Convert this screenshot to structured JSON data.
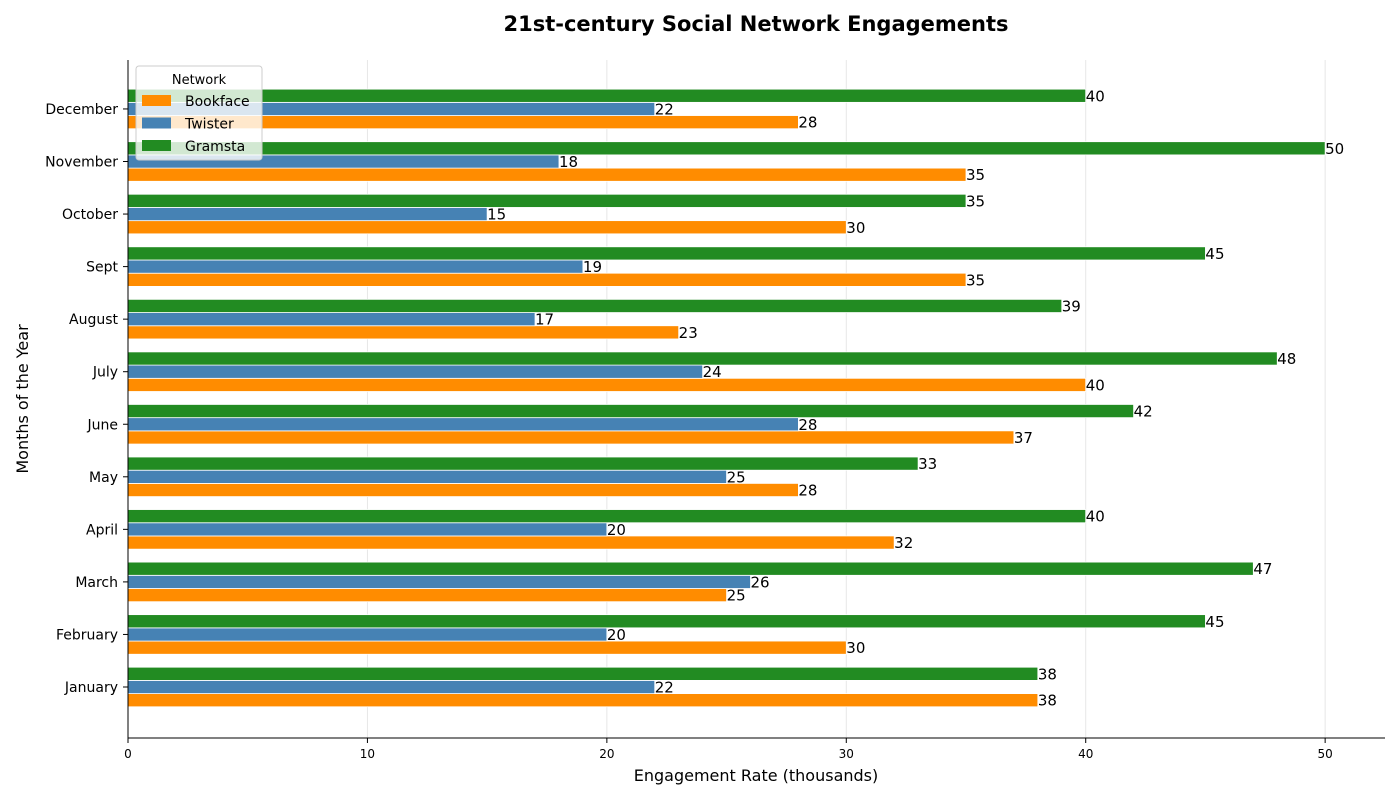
{
  "chart_data": {
    "type": "bar",
    "orientation": "horizontal",
    "title": "21st-century Social Network Engagements",
    "xlabel": "Engagement Rate (thousands)",
    "ylabel": "Months of the Year",
    "categories": [
      "January",
      "February",
      "March",
      "April",
      "May",
      "June",
      "July",
      "August",
      "Sept",
      "October",
      "November",
      "December"
    ],
    "series": [
      {
        "name": "Bookface",
        "color": "#ff8c00",
        "values": [
          38,
          30,
          25,
          32,
          28,
          37,
          40,
          23,
          35,
          30,
          35,
          28
        ]
      },
      {
        "name": "Twister",
        "color": "#4682b4",
        "values": [
          22,
          20,
          26,
          20,
          25,
          28,
          24,
          17,
          19,
          15,
          18,
          22
        ]
      },
      {
        "name": "Gramsta",
        "color": "#228b22",
        "values": [
          38,
          45,
          47,
          40,
          33,
          42,
          48,
          39,
          45,
          35,
          50,
          40
        ]
      }
    ],
    "xlim": [
      0,
      52.5
    ],
    "xticks": [
      0,
      10,
      20,
      30,
      40,
      50
    ],
    "grid": "x",
    "legend": {
      "title": "Network",
      "placement": "top-left"
    }
  }
}
